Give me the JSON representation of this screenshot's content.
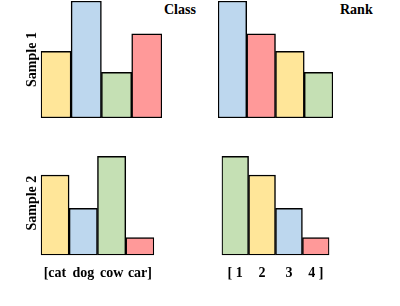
{
  "chart_data": [
    {
      "type": "bar",
      "title": "Class",
      "y_label": "Sample 1",
      "categories": [
        "[cat",
        "dog",
        "cow",
        "car]"
      ],
      "values": [
        0.57,
        1.0,
        0.39,
        0.72
      ],
      "colors": [
        "#ffe699",
        "#bdd7ee",
        "#c5e0b4",
        "#ff9999"
      ],
      "ylim": [
        0,
        1
      ],
      "tick_labels": false,
      "grid": false
    },
    {
      "type": "bar",
      "title": "Rank",
      "categories": [
        "[ 1",
        "2",
        "3",
        "4 ]"
      ],
      "values": [
        1.0,
        0.72,
        0.57,
        0.39
      ],
      "colors": [
        "#bdd7ee",
        "#ff9999",
        "#ffe699",
        "#c5e0b4"
      ],
      "ylim": [
        0,
        1
      ],
      "tick_labels": false,
      "grid": false
    },
    {
      "type": "bar",
      "y_label": "Sample 2",
      "categories": [
        "[cat",
        "dog",
        "cow",
        "car]"
      ],
      "values": [
        0.77,
        0.45,
        0.95,
        0.17
      ],
      "colors": [
        "#ffe699",
        "#bdd7ee",
        "#c5e0b4",
        "#ff9999"
      ],
      "ylim": [
        0,
        1
      ],
      "tick_labels": "x",
      "grid": false
    },
    {
      "type": "bar",
      "categories": [
        "[ 1",
        "2",
        "3",
        "4 ]"
      ],
      "values": [
        0.95,
        0.77,
        0.45,
        0.17
      ],
      "colors": [
        "#c5e0b4",
        "#ffe699",
        "#bdd7ee",
        "#ff9999"
      ],
      "ylim": [
        0,
        1
      ],
      "tick_labels": "x",
      "grid": false
    }
  ]
}
